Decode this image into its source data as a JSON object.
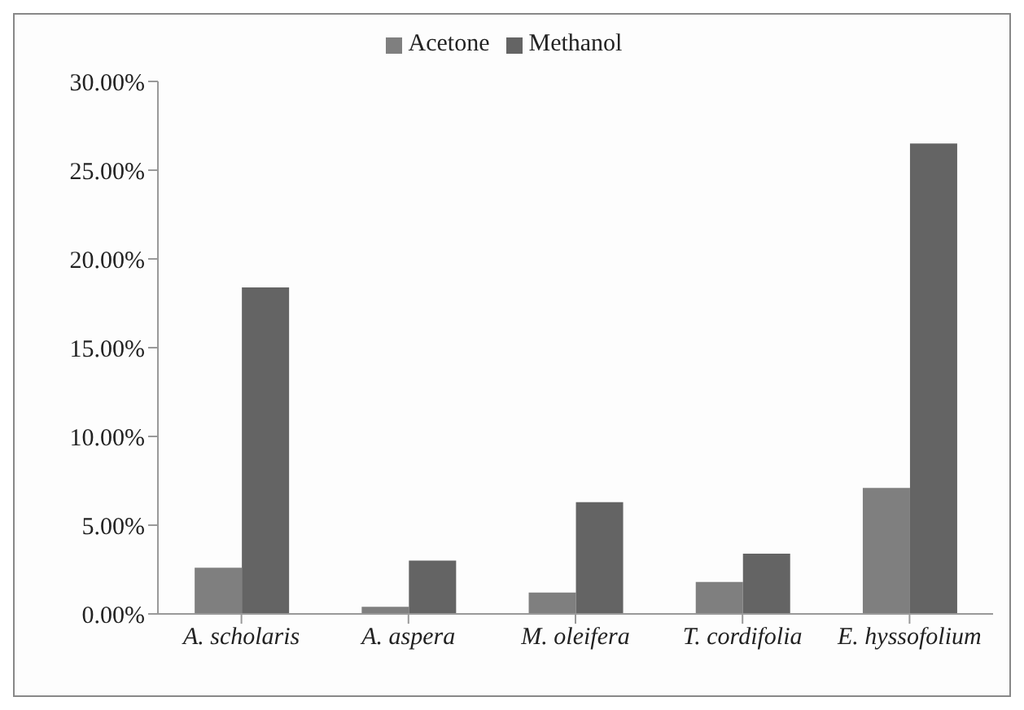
{
  "chart_data": {
    "type": "bar",
    "categories": [
      "A. scholaris",
      "A. aspera",
      "M. oleifera",
      "T. cordifolia",
      "E. hyssofolium"
    ],
    "series": [
      {
        "name": "Acetone",
        "color": "#7f7f7f",
        "values": [
          2.6,
          0.4,
          1.2,
          1.8,
          7.1
        ]
      },
      {
        "name": "Methanol",
        "color": "#646464",
        "values": [
          18.4,
          3.0,
          6.3,
          3.4,
          26.5
        ]
      }
    ],
    "ylim": [
      0,
      30
    ],
    "yticks": [
      {
        "value": 0,
        "label": "0.00%"
      },
      {
        "value": 5,
        "label": "5.00%"
      },
      {
        "value": 10,
        "label": "10.00%"
      },
      {
        "value": 15,
        "label": "15.00%"
      },
      {
        "value": 20,
        "label": "20.00%"
      },
      {
        "value": 25,
        "label": "25.00%"
      },
      {
        "value": 30,
        "label": "30.00%"
      }
    ],
    "grid": false,
    "legend": "top"
  }
}
